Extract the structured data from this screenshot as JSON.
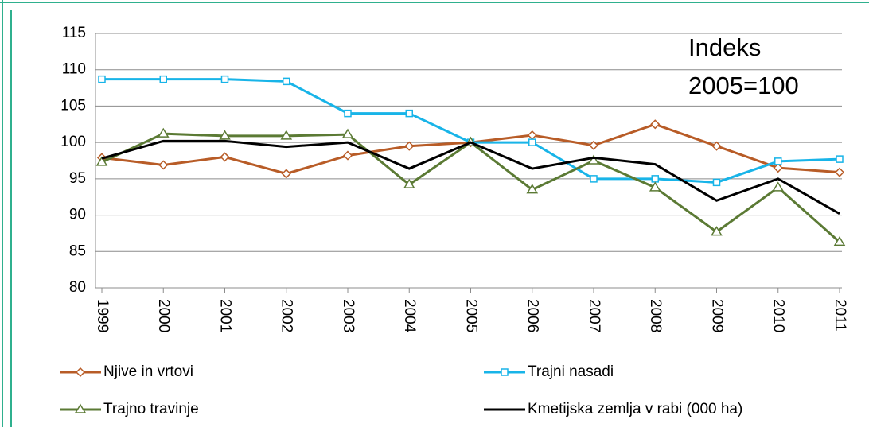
{
  "chart_data": {
    "type": "line",
    "annotation": [
      "Indeks",
      "2005=100"
    ],
    "categories": [
      "1999",
      "2000",
      "2001",
      "2002",
      "2003",
      "2004",
      "2005",
      "2006",
      "2007",
      "2008",
      "2009",
      "2010",
      "2011"
    ],
    "series": [
      {
        "name": "Njive in vrtovi",
        "color": "#b85c27",
        "marker": "diamond",
        "values": [
          97.9,
          96.9,
          98.0,
          95.7,
          98.2,
          99.5,
          100,
          101,
          99.6,
          102.5,
          99.5,
          96.5,
          95.9
        ]
      },
      {
        "name": "Trajni nasadi",
        "color": "#18b4e8",
        "marker": "square",
        "values": [
          108.7,
          108.7,
          108.7,
          108.4,
          104,
          104,
          100,
          100,
          95,
          95,
          94.5,
          97.4,
          97.7
        ]
      },
      {
        "name": "Trajno travinje",
        "color": "#5b7a34",
        "marker": "triangle",
        "values": [
          97.3,
          101.2,
          100.9,
          100.9,
          101.1,
          94.2,
          100,
          93.5,
          97.5,
          93.8,
          87.7,
          93.8,
          86.3
        ]
      },
      {
        "name": "Kmetijska zemlja v rabi (000 ha)",
        "color": "#000000",
        "marker": "none",
        "values": [
          97.8,
          100.2,
          100.2,
          99.4,
          100,
          96.4,
          100,
          96.4,
          97.9,
          97,
          92,
          95,
          90.2
        ]
      }
    ],
    "ylim": [
      80,
      115
    ],
    "yticks": [
      80,
      85,
      90,
      95,
      100,
      105,
      110,
      115
    ],
    "grid": true
  }
}
